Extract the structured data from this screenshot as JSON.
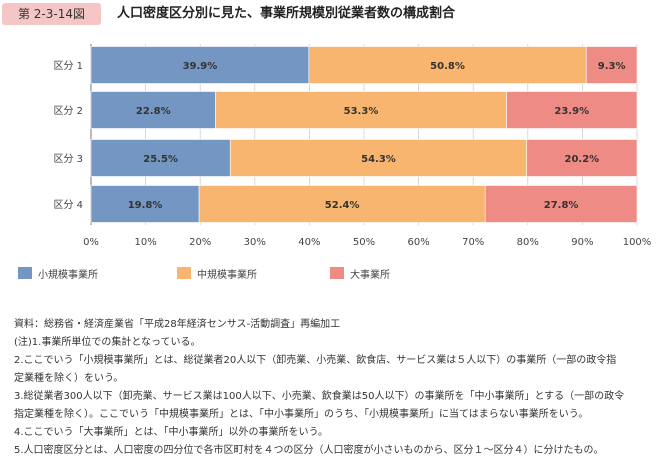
{
  "figure": {
    "label": "第 2-3-14図",
    "title": "人口密度区分別に見た、事業所規模別従業者数の構成割合"
  },
  "chart_data": {
    "type": "bar",
    "orientation": "horizontal",
    "stacked": true,
    "categories": [
      "区分 1",
      "区分 2",
      "区分 3",
      "区分 4"
    ],
    "series": [
      {
        "name": "小規模事業所",
        "color": "#7397c2",
        "values": [
          39.9,
          22.8,
          25.5,
          19.8
        ]
      },
      {
        "name": "中規模事業所",
        "color": "#f8b56f",
        "values": [
          50.8,
          53.3,
          54.3,
          52.4
        ]
      },
      {
        "name": "大事業所",
        "color": "#ef8b85",
        "values": [
          9.3,
          23.9,
          20.2,
          27.8
        ]
      }
    ],
    "xlim": [
      0,
      100
    ],
    "xticks": [
      "0%",
      "10%",
      "20%",
      "30%",
      "40%",
      "50%",
      "60%",
      "70%",
      "80%",
      "90%",
      "100%"
    ],
    "value_suffix": "%",
    "grid": true,
    "legend_position": "bottom"
  },
  "notes": [
    "資料：総務省・経済産業省「平成28年経済センサス-活動調査」再編加工",
    "(注)1.事業所単位での集計となっている。",
    "2.ここでいう「小規模事業所」とは、総従業者20人以下（卸売業、小売業、飲食店、サービス業は５人以下）の事業所（一部の政令指",
    "定業種を除く）をいう。",
    "3.総従業者300人以下（卸売業、サービス業は100人以下、小売業、飲食業は50人以下）の事業所を「中小事業所」とする（一部の政令",
    "指定業種を除く）。ここでいう「中規模事業所」とは、「中小事業所」のうち、「小規模事業所」に当てはまらない事業所をいう。",
    "4.ここでいう「大事業所」とは、「中小事業所」以外の事業所をいう。",
    "5.人口密度区分とは、人口密度の四分位で各市区町村を４つの区分（人口密度が小さいものから、区分１～区分４）に分けたもの。"
  ]
}
